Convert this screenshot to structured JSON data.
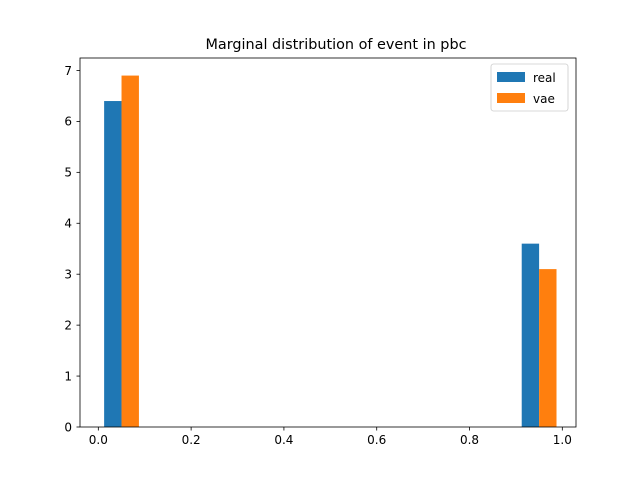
{
  "chart_data": {
    "type": "bar",
    "title": "Marginal distribution of event in pbc",
    "xlabel": "",
    "ylabel": "",
    "xlim": [
      -0.0395,
      1.0295
    ],
    "ylim": [
      0,
      7.245
    ],
    "xticks": [
      0.0,
      0.2,
      0.4,
      0.6,
      0.8,
      1.0
    ],
    "xtick_labels": [
      "0.0",
      "0.2",
      "0.4",
      "0.6",
      "0.8",
      "1.0"
    ],
    "yticks": [
      0,
      1,
      2,
      3,
      4,
      5,
      6,
      7
    ],
    "ytick_labels": [
      "0",
      "1",
      "2",
      "3",
      "4",
      "5",
      "6",
      "7"
    ],
    "grid": false,
    "legend_position": "top-right",
    "series": [
      {
        "name": "real",
        "color": "#1f77b4",
        "bars": [
          {
            "x_start": 0.0125,
            "x_end": 0.05,
            "value": 6.4
          },
          {
            "x_start": 0.9125,
            "x_end": 0.95,
            "value": 3.6
          }
        ]
      },
      {
        "name": "vae",
        "color": "#ff7f0e",
        "bars": [
          {
            "x_start": 0.05,
            "x_end": 0.0875,
            "value": 6.9
          },
          {
            "x_start": 0.95,
            "x_end": 0.9875,
            "value": 3.1
          }
        ]
      }
    ]
  }
}
